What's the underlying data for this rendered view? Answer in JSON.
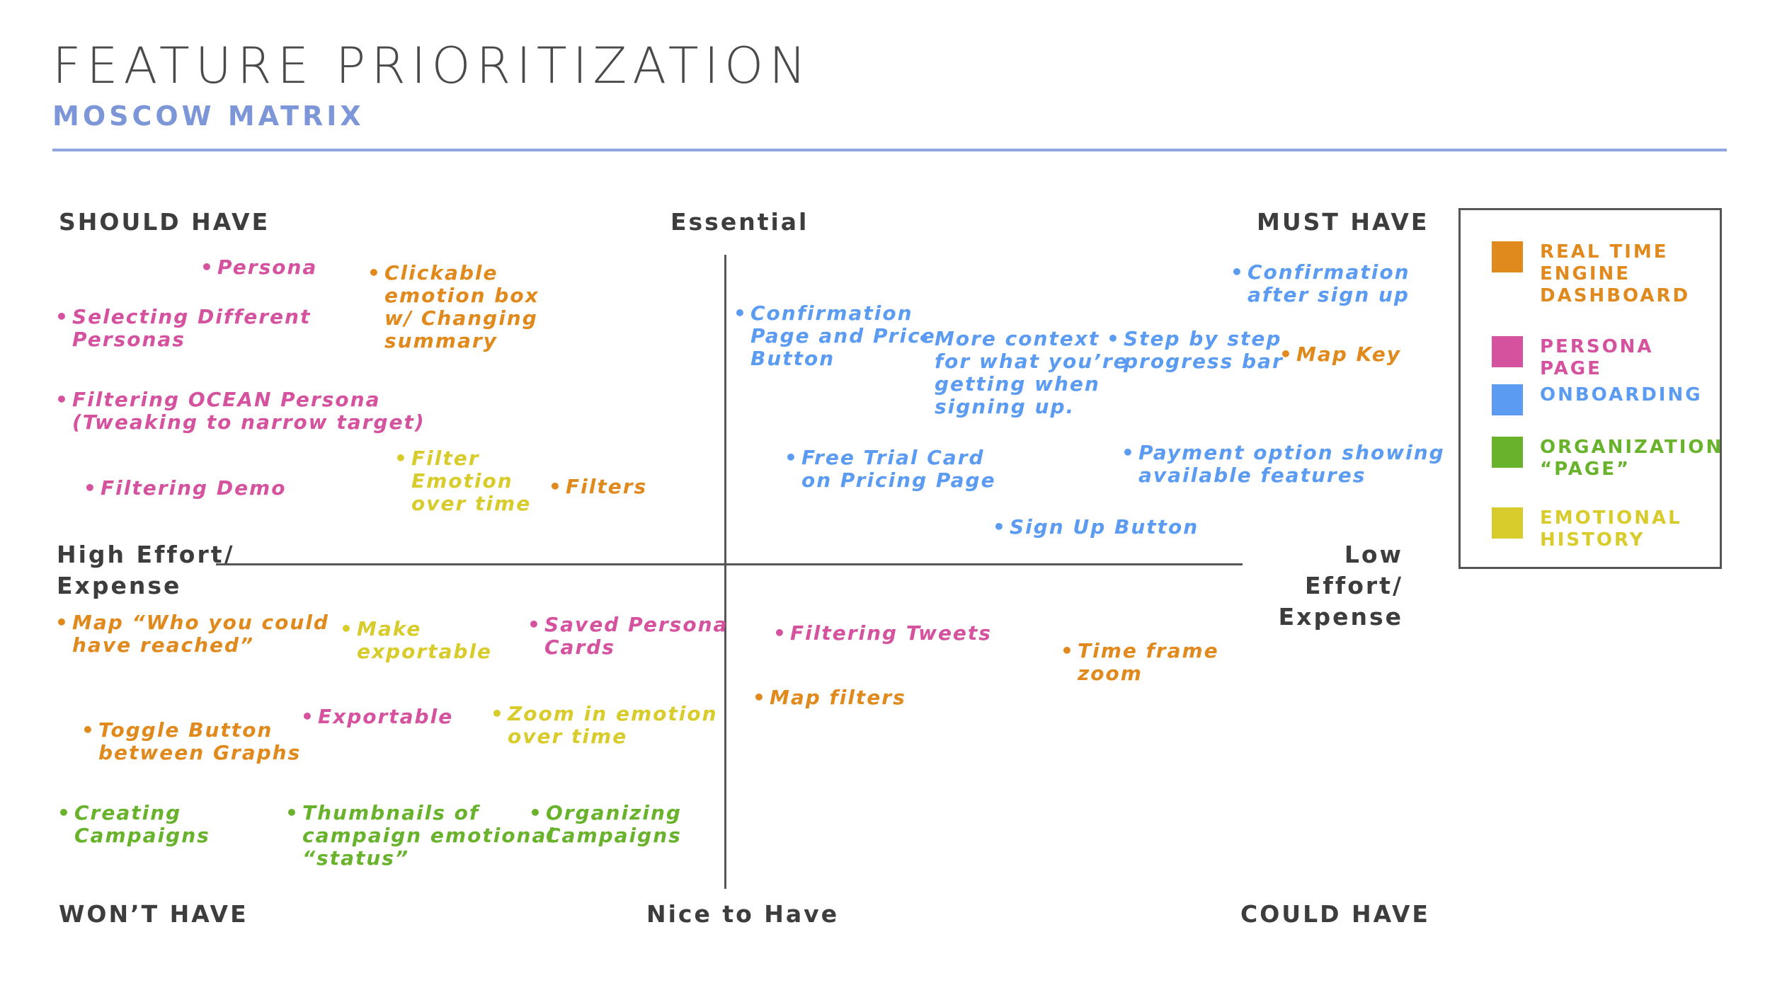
{
  "title": "FEATURE PRIORITIZATION",
  "subtitle": "MOSCOW MATRIX",
  "axes": {
    "top_left": "SHOULD HAVE",
    "top": "Essential",
    "top_right": "MUST HAVE",
    "left": "High Effort/\nExpense",
    "right": "Low Effort/\nExpense",
    "bottom_left": "WON’T HAVE",
    "bottom": "Nice to Have",
    "bottom_right": "COULD HAVE"
  },
  "colors": {
    "orange": "#e08a1e",
    "pink": "#d4529e",
    "blue": "#5b9bf2",
    "green": "#68b22c",
    "yellow": "#d8cc2c"
  },
  "bullet": "•",
  "items": [
    {
      "text": "Persona",
      "color": "pink"
    },
    {
      "text": "Clickable\nemotion box\nw/ Changing\nsummary",
      "color": "orange"
    },
    {
      "text": "Selecting Different\nPersonas",
      "color": "pink"
    },
    {
      "text": "Filtering OCEAN Persona\n(Tweaking to narrow target)",
      "color": "pink"
    },
    {
      "text": "Filter\nEmotion\nover time",
      "color": "yellow"
    },
    {
      "text": "Filters",
      "color": "orange"
    },
    {
      "text": "Filtering Demo",
      "color": "pink"
    },
    {
      "text": "Confirmation\nafter sign up",
      "color": "blue"
    },
    {
      "text": "Confirmation\nPage and Price\nButton",
      "color": "blue"
    },
    {
      "text": "More context\nfor what you’re\ngetting when\nsigning up.",
      "color": "blue"
    },
    {
      "text": "Step by step\nprogress bar",
      "color": "blue"
    },
    {
      "text": "Map Key",
      "color": "orange"
    },
    {
      "text": "Free Trial Card\non Pricing Page",
      "color": "blue"
    },
    {
      "text": "Payment option showing\navailable features",
      "color": "blue"
    },
    {
      "text": "Sign Up Button",
      "color": "blue"
    },
    {
      "text": "Map “Who you could\nhave reached”",
      "color": "orange"
    },
    {
      "text": "Make\nexportable",
      "color": "yellow"
    },
    {
      "text": "Saved Persona\nCards",
      "color": "pink"
    },
    {
      "text": "Toggle Button\nbetween Graphs",
      "color": "orange"
    },
    {
      "text": "Exportable",
      "color": "pink"
    },
    {
      "text": "Zoom in emotion\nover time",
      "color": "yellow"
    },
    {
      "text": "Creating\nCampaigns",
      "color": "green"
    },
    {
      "text": "Thumbnails of\ncampaign emotional\n“status”",
      "color": "green"
    },
    {
      "text": "Organizing\nCampaigns",
      "color": "green"
    },
    {
      "text": "Filtering Tweets",
      "color": "pink"
    },
    {
      "text": "Time frame\nzoom",
      "color": "orange"
    },
    {
      "text": "Map filters",
      "color": "orange"
    }
  ],
  "legend": [
    {
      "label": "REAL TIME\nENGINE\nDASHBOARD",
      "color": "orange"
    },
    {
      "label": "PERSONA PAGE",
      "color": "pink"
    },
    {
      "label": "ONBOARDING",
      "color": "blue"
    },
    {
      "label": "ORGANIZATION\n“PAGE”",
      "color": "green"
    },
    {
      "label": "EMOTIONAL\nHISTORY",
      "color": "yellow"
    }
  ]
}
